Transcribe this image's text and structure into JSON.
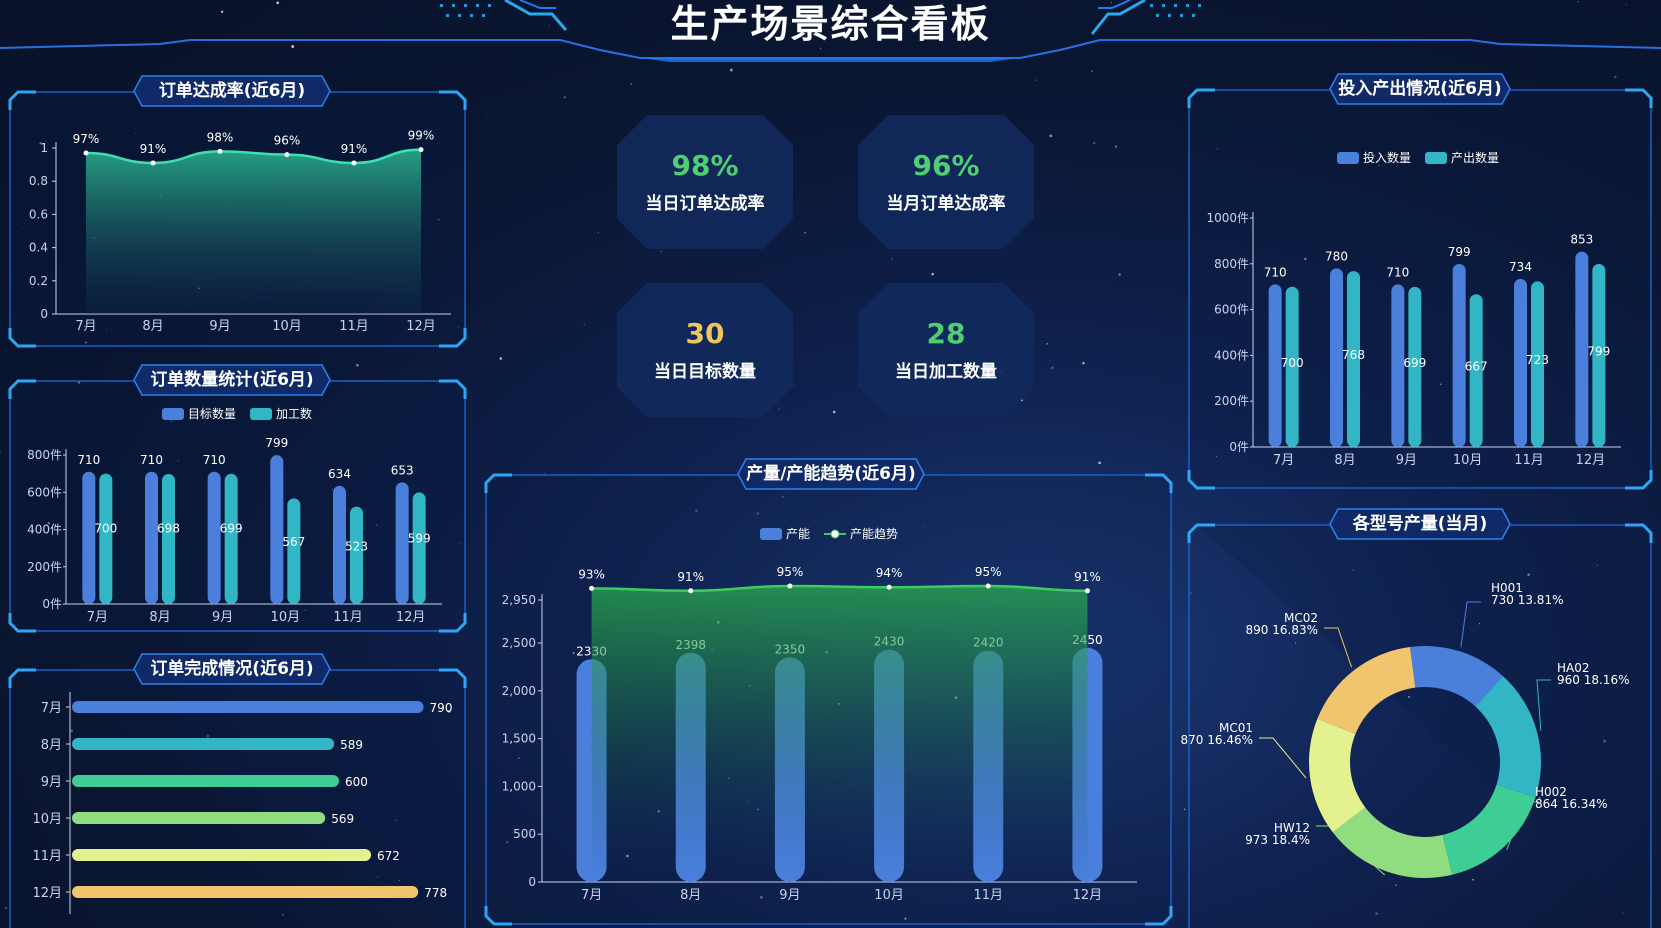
{
  "page": {
    "title": "生产场景综合看板"
  },
  "kpis": [
    {
      "value": "98%",
      "label": "当日订单达成率",
      "color": "#4fce74"
    },
    {
      "value": "96%",
      "label": "当月订单达成率",
      "color": "#4fce74"
    },
    {
      "value": "30",
      "label": "当日目标数量",
      "color": "#f0c65a"
    },
    {
      "value": "28",
      "label": "当日加工数量",
      "color": "#4fce74"
    }
  ],
  "panels": {
    "rate": {
      "title": "订单达成率(近6月)"
    },
    "qty": {
      "title": "订单数量统计(近6月)"
    },
    "done": {
      "title": "订单完成情况(近6月)"
    },
    "trend": {
      "title": "产量/产能趋势(近6月)"
    },
    "io": {
      "title": "投入产出情况(近6月)"
    },
    "model": {
      "title": "各型号产量(当月)"
    }
  },
  "chart_data": [
    {
      "id": "rate",
      "type": "area",
      "title": "订单达成率(近6月)",
      "categories": [
        "7月",
        "8月",
        "9月",
        "10月",
        "11月",
        "12月"
      ],
      "values": [
        0.97,
        0.91,
        0.98,
        0.96,
        0.91,
        0.99
      ],
      "labels": [
        "97%",
        "91%",
        "98%",
        "96%",
        "91%",
        "99%"
      ],
      "yticks": [
        "0",
        "0.2",
        "0.4",
        "0.6",
        "0.8",
        "1"
      ],
      "ylim": [
        0,
        1
      ],
      "color": "#3ce0b0"
    },
    {
      "id": "qty",
      "type": "bar",
      "title": "订单数量统计(近6月)",
      "categories": [
        "7月",
        "8月",
        "9月",
        "10月",
        "11月",
        "12月"
      ],
      "series": [
        {
          "name": "目标数量",
          "values": [
            710,
            710,
            710,
            799,
            634,
            653
          ],
          "color": "#4a7fdb"
        },
        {
          "name": "加工数",
          "values": [
            700,
            698,
            699,
            567,
            523,
            599
          ],
          "color": "#32b6c6"
        }
      ],
      "yticks": [
        "0件",
        "200件",
        "400件",
        "600件",
        "800件"
      ],
      "ylim": [
        0,
        800
      ]
    },
    {
      "id": "done",
      "type": "bar",
      "orientation": "horizontal",
      "title": "订单完成情况(近6月)",
      "categories": [
        "7月",
        "8月",
        "9月",
        "10月",
        "11月",
        "12月"
      ],
      "values": [
        790,
        589,
        600,
        569,
        672,
        778
      ],
      "colors": [
        "#4a7fdb",
        "#32b6c6",
        "#3ecd95",
        "#8fdd7e",
        "#e3f18e",
        "#f0c56e"
      ],
      "xmax": 800
    },
    {
      "id": "trend",
      "type": "bar",
      "title": "产量/产能趋势(近6月)",
      "categories": [
        "7月",
        "8月",
        "9月",
        "10月",
        "11月",
        "12月"
      ],
      "series": [
        {
          "name": "产能",
          "values": [
            2330,
            2398,
            2350,
            2430,
            2420,
            2450
          ],
          "color": "#4a7fdb"
        },
        {
          "name": "产能趋势",
          "values": [
            0.93,
            0.91,
            0.95,
            0.94,
            0.95,
            0.91
          ],
          "labels": [
            "93%",
            "91%",
            "95%",
            "94%",
            "95%",
            "91%"
          ],
          "color": "#3ccc5c"
        }
      ],
      "yticks": [
        "0",
        "500",
        "1,000",
        "1,500",
        "2,000",
        "2,500",
        "2,950"
      ],
      "ylim": [
        0,
        2950
      ]
    },
    {
      "id": "io",
      "type": "bar",
      "title": "投入产出情况(近6月)",
      "categories": [
        "7月",
        "8月",
        "9月",
        "10月",
        "11月",
        "12月"
      ],
      "series": [
        {
          "name": "投入数量",
          "values": [
            710,
            780,
            710,
            799,
            734,
            853
          ],
          "color": "#4a7fdb"
        },
        {
          "name": "产出数量",
          "values": [
            700,
            768,
            699,
            667,
            723,
            799
          ],
          "color": "#32b6c6"
        }
      ],
      "yticks": [
        "0件",
        "200件",
        "400件",
        "600件",
        "800件",
        "1000件"
      ],
      "ylim": [
        0,
        1000
      ]
    },
    {
      "id": "model",
      "type": "pie",
      "title": "各型号产量(当月)",
      "slices": [
        {
          "name": "H001",
          "value": 730,
          "percent": "13.81%",
          "color": "#4a7fdb"
        },
        {
          "name": "HA02",
          "value": 960,
          "percent": "18.16%",
          "color": "#32b6c6"
        },
        {
          "name": "H002",
          "value": 864,
          "percent": "16.34%",
          "color": "#3ecd95"
        },
        {
          "name": "HW12",
          "value": 973,
          "percent": "18.4%",
          "color": "#8fdd7e"
        },
        {
          "name": "MC01",
          "value": 870,
          "percent": "16.46%",
          "color": "#e3f18e"
        },
        {
          "name": "MC02",
          "value": 890,
          "percent": "16.83%",
          "color": "#f0c56e"
        }
      ]
    }
  ]
}
